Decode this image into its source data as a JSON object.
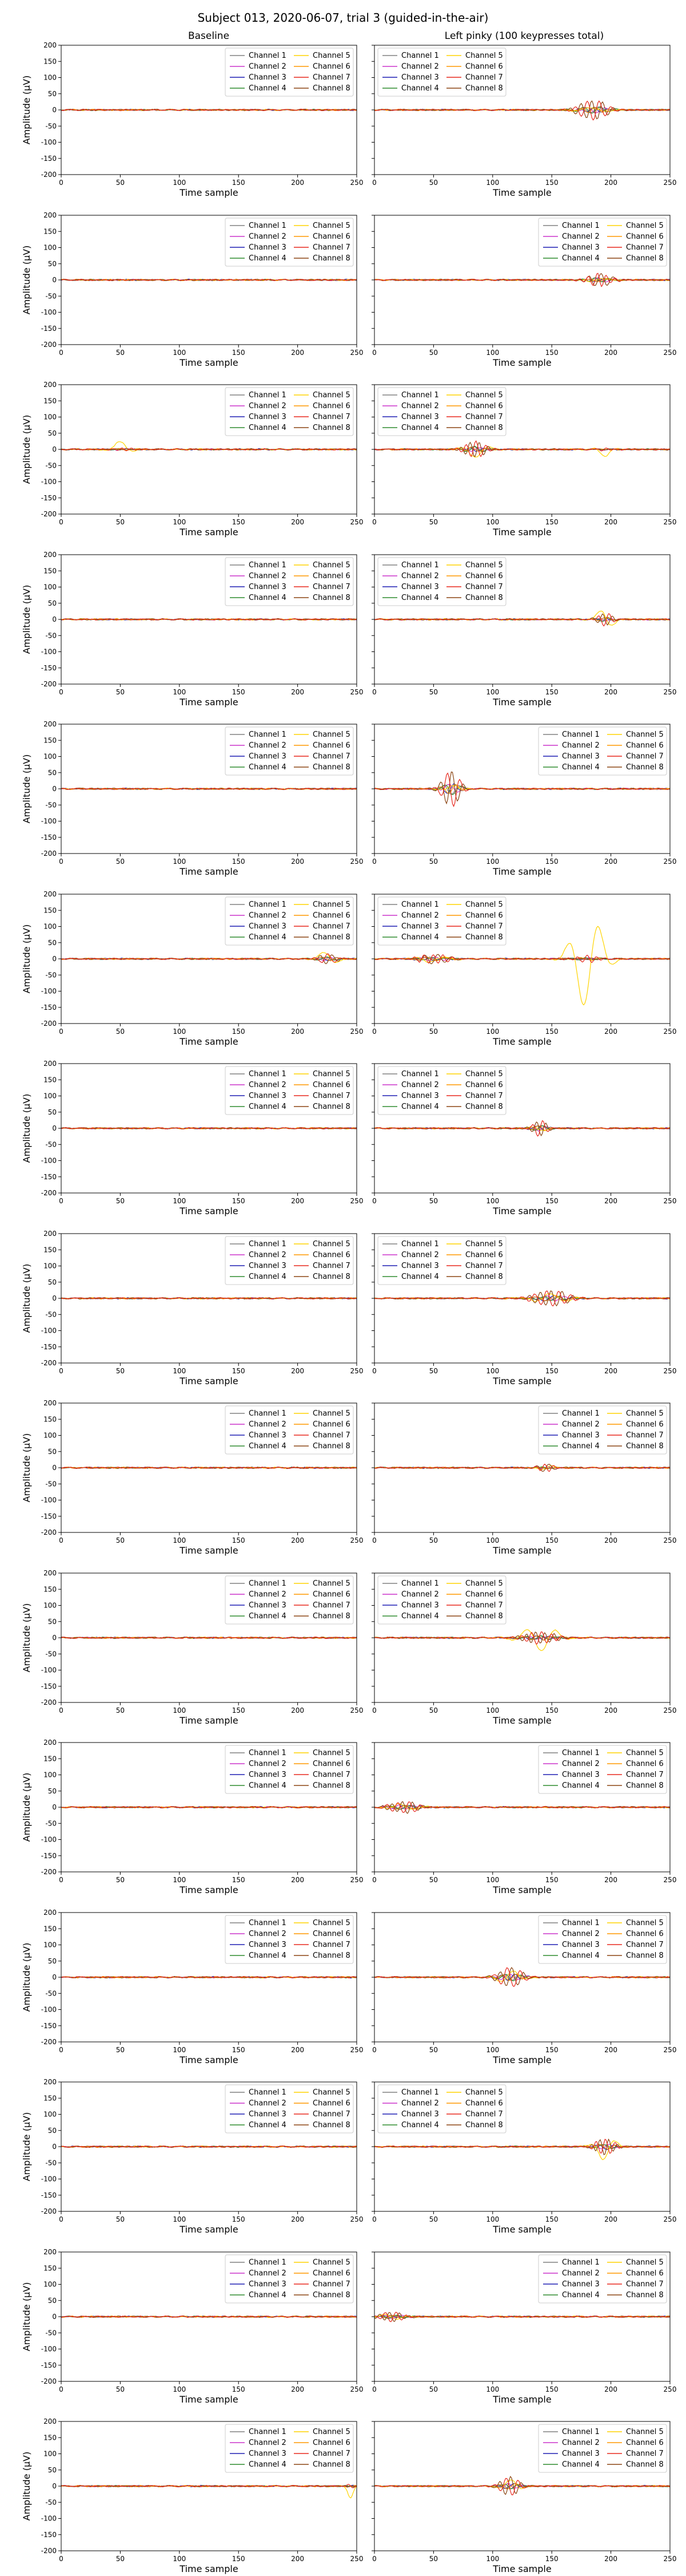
{
  "figure": {
    "title": "Subject 013, 2020-06-07, trial 3 (guided-in-the-air)",
    "column_titles": [
      "Baseline",
      "Left pinky (100 keypresses total)"
    ]
  },
  "chart_data": {
    "type": "line",
    "grid": "off",
    "rows": 15,
    "columns": 2,
    "xlabel": "Time sample",
    "ylabel": "Amplitude (µV)",
    "xlim": [
      0,
      250
    ],
    "ylim": [
      -200,
      200
    ],
    "xticks": [
      0,
      50,
      100,
      150,
      200,
      250
    ],
    "yticks": [
      -200,
      -150,
      -100,
      -50,
      0,
      50,
      100,
      150,
      200
    ],
    "legend_entries": [
      "Channel 1",
      "Channel 2",
      "Channel 3",
      "Channel 4",
      "Channel 5",
      "Channel 6",
      "Channel 7",
      "Channel 8"
    ],
    "channel_colors": [
      "#808080",
      "#cc33cc",
      "#1f1fb4",
      "#2e8b2e",
      "#ffd400",
      "#ff9900",
      "#e8281e",
      "#8b4513"
    ],
    "legend_position_baseline": "top-right",
    "legend_position_keypress": [
      "top-left",
      "top-right",
      "top-left",
      "top-left",
      "top-right",
      "top-left",
      "top-left",
      "top-left",
      "top-right",
      "top-left",
      "top-right",
      "top-right",
      "top-left",
      "top-right",
      "top-right"
    ],
    "bursts": [
      {
        "row": 1,
        "column": 2,
        "center": 185,
        "width": 30,
        "amplitude": 30,
        "dominant_channels": [
          7,
          8
        ],
        "yellow_amplitude": 8
      },
      {
        "row": 2,
        "column": 2,
        "center": 190,
        "width": 25,
        "amplitude": 20,
        "dominant_channels": [
          7,
          8
        ],
        "yellow_amplitude": 5
      },
      {
        "row": 3,
        "column": 1,
        "center": 50,
        "width": 18,
        "amplitude": 5,
        "dominant_channels": [
          7
        ],
        "yellow_amplitude": 25
      },
      {
        "row": 3,
        "column": 2,
        "center": 85,
        "width": 22,
        "amplitude": 25,
        "dominant_channels": [
          7,
          8
        ],
        "yellow_amplitude": 25
      },
      {
        "row": 3,
        "column": 2,
        "center": 195,
        "width": 15,
        "amplitude": 5,
        "dominant_channels": [
          7
        ],
        "yellow_amplitude": 20
      },
      {
        "row": 4,
        "column": 2,
        "center": 195,
        "width": 15,
        "amplitude": 20,
        "dominant_channels": [
          7,
          8
        ],
        "yellow_amplitude": 40
      },
      {
        "row": 5,
        "column": 2,
        "center": 65,
        "width": 18,
        "amplitude": 55,
        "dominant_channels": [
          7,
          8
        ],
        "yellow_amplitude": 10
      },
      {
        "row": 6,
        "column": 1,
        "center": 225,
        "width": 18,
        "amplitude": 15,
        "dominant_channels": [
          7,
          8
        ],
        "yellow_amplitude": 25
      },
      {
        "row": 6,
        "column": 2,
        "center": 50,
        "width": 30,
        "amplitude": 15,
        "dominant_channels": [
          7,
          8
        ],
        "yellow_amplitude": 10
      },
      {
        "row": 6,
        "column": 2,
        "center": 180,
        "width": 30,
        "amplitude": 10,
        "dominant_channels": [
          7
        ],
        "yellow_amplitude": 150
      },
      {
        "row": 7,
        "column": 2,
        "center": 140,
        "width": 15,
        "amplitude": 25,
        "dominant_channels": [
          7,
          8
        ],
        "yellow_amplitude": 10
      },
      {
        "row": 8,
        "column": 2,
        "center": 150,
        "width": 35,
        "amplitude": 25,
        "dominant_channels": [
          7,
          8
        ],
        "yellow_amplitude": 15
      },
      {
        "row": 9,
        "column": 2,
        "center": 145,
        "width": 15,
        "amplitude": 12,
        "dominant_channels": [
          7,
          8
        ],
        "yellow_amplitude": 8
      },
      {
        "row": 10,
        "column": 2,
        "center": 140,
        "width": 35,
        "amplitude": 18,
        "dominant_channels": [
          7,
          8
        ],
        "yellow_amplitude": 40
      },
      {
        "row": 11,
        "column": 2,
        "center": 25,
        "width": 30,
        "amplitude": 18,
        "dominant_channels": [
          7,
          8
        ],
        "yellow_amplitude": 10
      },
      {
        "row": 12,
        "column": 2,
        "center": 115,
        "width": 25,
        "amplitude": 30,
        "dominant_channels": [
          7,
          8
        ],
        "yellow_amplitude": 20
      },
      {
        "row": 13,
        "column": 2,
        "center": 195,
        "width": 20,
        "amplitude": 25,
        "dominant_channels": [
          7,
          8
        ],
        "yellow_amplitude": 40
      },
      {
        "row": 14,
        "column": 2,
        "center": 15,
        "width": 25,
        "amplitude": 15,
        "dominant_channels": [
          7,
          8
        ],
        "yellow_amplitude": 8
      },
      {
        "row": 15,
        "column": 1,
        "center": 245,
        "width": 8,
        "amplitude": 5,
        "dominant_channels": [
          7
        ],
        "yellow_amplitude": 35
      },
      {
        "row": 15,
        "column": 2,
        "center": 115,
        "width": 20,
        "amplitude": 30,
        "dominant_channels": [
          7,
          8
        ],
        "yellow_amplitude": 20
      }
    ]
  }
}
